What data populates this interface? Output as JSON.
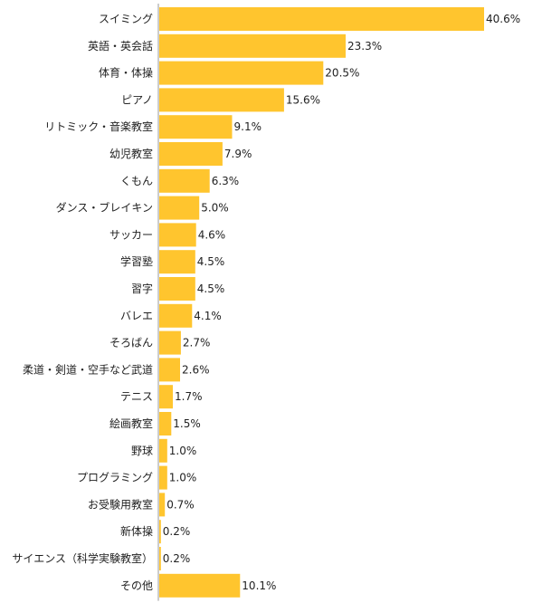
{
  "chart_data": {
    "type": "bar",
    "orientation": "horizontal",
    "categories": [
      "スイミング",
      "英語・英会話",
      "体育・体操",
      "ピアノ",
      "リトミック・音楽教室",
      "幼児教室",
      "くもん",
      "ダンス・ブレイキン",
      "サッカー",
      "学習塾",
      "習字",
      "バレエ",
      "そろばん",
      "柔道・剣道・空手など武道",
      "テニス",
      "絵画教室",
      "野球",
      "プログラミング",
      "お受験用教室",
      "新体操",
      "サイエンス（科学実験教室）",
      "その他"
    ],
    "values": [
      40.6,
      23.3,
      20.5,
      15.6,
      9.1,
      7.9,
      6.3,
      5.0,
      4.6,
      4.5,
      4.5,
      4.1,
      2.7,
      2.6,
      1.7,
      1.5,
      1.0,
      1.0,
      0.7,
      0.2,
      0.2,
      10.1
    ],
    "value_labels": [
      "40.6%",
      "23.3%",
      "20.5%",
      "15.6%",
      "9.1%",
      "7.9%",
      "6.3%",
      "5.0%",
      "4.6%",
      "4.5%",
      "4.5%",
      "4.1%",
      "2.7%",
      "2.6%",
      "1.7%",
      "1.5%",
      "1.0%",
      "1.0%",
      "0.7%",
      "0.2%",
      "0.2%",
      "10.1%"
    ],
    "unit": "%",
    "xlim": [
      0,
      40.6
    ],
    "grid": false,
    "legend": "none",
    "bar_color": "#FFC52E",
    "axis_color": "#999999"
  }
}
